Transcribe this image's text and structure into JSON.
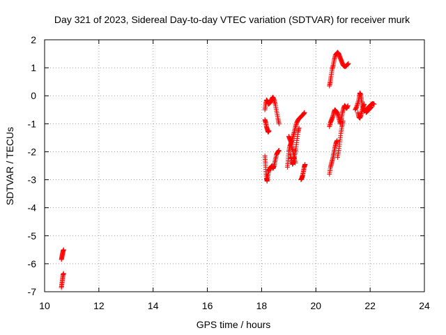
{
  "chart_data": {
    "type": "scatter",
    "title": "Day 321 of 2023, Sidereal Day-to-day VTEC variation (SDTVAR) for receiver murk",
    "xlabel": "GPS time / hours",
    "ylabel": "SDTVAR / TECUs",
    "xlim": [
      10,
      24
    ],
    "ylim": [
      -7,
      2
    ],
    "xticks": [
      10,
      12,
      14,
      16,
      18,
      20,
      22,
      24
    ],
    "yticks": [
      -7,
      -6,
      -5,
      -4,
      -3,
      -2,
      -1,
      0,
      1,
      2
    ],
    "grid": true,
    "marker": "+",
    "color": "#ff0000",
    "series": [
      {
        "name": "SDTVAR",
        "segments": [
          [
            [
              10.62,
              -6.85
            ],
            [
              10.64,
              -6.7
            ],
            [
              10.66,
              -6.55
            ],
            [
              10.68,
              -6.4
            ],
            [
              10.7,
              -6.35
            ]
          ],
          [
            [
              10.62,
              -5.85
            ],
            [
              10.64,
              -5.75
            ],
            [
              10.66,
              -5.65
            ],
            [
              10.68,
              -5.55
            ],
            [
              10.7,
              -5.5
            ]
          ],
          [
            [
              18.12,
              -0.5
            ],
            [
              18.15,
              -0.3
            ],
            [
              18.18,
              -0.15
            ],
            [
              18.22,
              -0.2
            ],
            [
              18.26,
              -0.3
            ],
            [
              18.3,
              -0.25
            ],
            [
              18.34,
              -0.2
            ],
            [
              18.38,
              -0.1
            ],
            [
              18.42,
              -0.05
            ],
            [
              18.46,
              -0.15
            ],
            [
              18.5,
              -0.3
            ],
            [
              18.55,
              -0.55
            ],
            [
              18.6,
              -0.8
            ],
            [
              18.64,
              -1.0
            ]
          ],
          [
            [
              18.12,
              -0.85
            ],
            [
              18.15,
              -0.95
            ],
            [
              18.18,
              -1.1
            ],
            [
              18.21,
              -1.2
            ],
            [
              18.24,
              -1.3
            ],
            [
              18.27,
              -1.25
            ]
          ],
          [
            [
              18.12,
              -2.15
            ],
            [
              18.14,
              -2.4
            ],
            [
              18.16,
              -2.7
            ],
            [
              18.18,
              -2.95
            ],
            [
              18.2,
              -3.05
            ],
            [
              18.22,
              -2.9
            ],
            [
              18.26,
              -2.7
            ],
            [
              18.3,
              -2.6
            ],
            [
              18.34,
              -2.55
            ],
            [
              18.38,
              -2.5
            ],
            [
              18.42,
              -2.6
            ],
            [
              18.46,
              -2.5
            ],
            [
              18.5,
              -2.3
            ],
            [
              18.55,
              -2.1
            ],
            [
              18.6,
              -2.0
            ],
            [
              18.64,
              -1.95
            ]
          ],
          [
            [
              18.95,
              -2.55
            ],
            [
              18.98,
              -2.3
            ],
            [
              19.0,
              -2.0
            ],
            [
              19.04,
              -1.8
            ],
            [
              19.08,
              -1.7
            ],
            [
              19.12,
              -1.6
            ],
            [
              19.16,
              -1.45
            ],
            [
              19.2,
              -1.3
            ],
            [
              19.25,
              -1.1
            ],
            [
              19.3,
              -0.95
            ],
            [
              19.35,
              -0.85
            ],
            [
              19.4,
              -0.8
            ],
            [
              19.45,
              -0.75
            ],
            [
              19.5,
              -0.7
            ],
            [
              19.55,
              -0.65
            ],
            [
              19.58,
              -0.6
            ]
          ],
          [
            [
              19.0,
              -1.45
            ],
            [
              19.04,
              -1.55
            ],
            [
              19.08,
              -1.65
            ],
            [
              19.12,
              -1.85
            ],
            [
              19.16,
              -2.0
            ],
            [
              19.2,
              -2.2
            ],
            [
              19.24,
              -2.4
            ]
          ],
          [
            [
              19.06,
              -2.1
            ],
            [
              19.1,
              -2.3
            ],
            [
              19.14,
              -2.45
            ],
            [
              19.18,
              -2.35
            ],
            [
              19.22,
              -2.1
            ],
            [
              19.26,
              -1.9
            ],
            [
              19.3,
              -1.6
            ],
            [
              19.34,
              -1.3
            ],
            [
              19.38,
              -1.15
            ]
          ],
          [
            [
              19.45,
              -3.0
            ],
            [
              19.48,
              -2.95
            ],
            [
              19.51,
              -2.85
            ],
            [
              19.54,
              -2.7
            ],
            [
              19.57,
              -2.55
            ],
            [
              19.6,
              -2.45
            ]
          ],
          [
            [
              20.5,
              0.35
            ],
            [
              20.53,
              0.5
            ],
            [
              20.56,
              0.7
            ],
            [
              20.6,
              0.95
            ],
            [
              20.64,
              1.1
            ],
            [
              20.68,
              1.3
            ],
            [
              20.72,
              1.45
            ],
            [
              20.76,
              1.5
            ],
            [
              20.8,
              1.55
            ],
            [
              20.84,
              1.5
            ],
            [
              20.88,
              1.4
            ],
            [
              20.92,
              1.3
            ],
            [
              20.96,
              1.2
            ],
            [
              21.0,
              1.1
            ],
            [
              21.05,
              1.05
            ],
            [
              21.1,
              1.05
            ],
            [
              21.15,
              1.1
            ],
            [
              21.2,
              1.15
            ]
          ],
          [
            [
              20.5,
              -1.1
            ],
            [
              20.54,
              -0.95
            ],
            [
              20.58,
              -0.85
            ],
            [
              20.62,
              -0.75
            ],
            [
              20.66,
              -0.6
            ],
            [
              20.7,
              -0.5
            ],
            [
              20.74,
              -0.55
            ],
            [
              20.78,
              -0.6
            ],
            [
              20.82,
              -0.7
            ],
            [
              20.86,
              -0.85
            ],
            [
              20.9,
              -1.0
            ],
            [
              20.94,
              -0.8
            ],
            [
              20.98,
              -0.6
            ],
            [
              21.02,
              -0.45
            ],
            [
              21.06,
              -0.35
            ],
            [
              21.1,
              -0.4
            ],
            [
              21.14,
              -0.45
            ],
            [
              21.18,
              -0.35
            ]
          ],
          [
            [
              20.5,
              -2.8
            ],
            [
              20.54,
              -2.55
            ],
            [
              20.58,
              -2.4
            ],
            [
              20.62,
              -2.25
            ],
            [
              20.66,
              -2.05
            ],
            [
              20.7,
              -1.85
            ],
            [
              20.74,
              -1.7
            ],
            [
              20.78,
              -1.6
            ]
          ],
          [
            [
              20.8,
              -2.2
            ],
            [
              20.84,
              -1.95
            ],
            [
              20.88,
              -1.65
            ],
            [
              20.92,
              -1.35
            ],
            [
              20.96,
              -1.1
            ],
            [
              21.0,
              -0.9
            ]
          ],
          [
            [
              21.45,
              -0.5
            ],
            [
              21.5,
              -0.4
            ],
            [
              21.55,
              -0.25
            ],
            [
              21.6,
              -0.05
            ],
            [
              21.62,
              0.1
            ],
            [
              21.65,
              0.05
            ],
            [
              21.68,
              -0.15
            ],
            [
              21.72,
              -0.35
            ],
            [
              21.76,
              -0.5
            ],
            [
              21.8,
              -0.55
            ],
            [
              21.85,
              -0.5
            ],
            [
              21.9,
              -0.45
            ],
            [
              21.95,
              -0.4
            ],
            [
              22.0,
              -0.35
            ],
            [
              22.05,
              -0.3
            ],
            [
              22.1,
              -0.28
            ],
            [
              22.15,
              -0.3
            ]
          ],
          [
            [
              21.55,
              -0.6
            ],
            [
              21.58,
              -0.75
            ],
            [
              21.62,
              -0.8
            ],
            [
              21.66,
              -0.7
            ],
            [
              21.7,
              -0.55
            ],
            [
              21.74,
              -0.4
            ],
            [
              21.78,
              -0.3
            ]
          ],
          [
            [
              21.85,
              -0.6
            ],
            [
              21.9,
              -0.55
            ],
            [
              21.95,
              -0.5
            ],
            [
              22.0,
              -0.45
            ],
            [
              22.05,
              -0.4
            ]
          ]
        ]
      }
    ]
  }
}
